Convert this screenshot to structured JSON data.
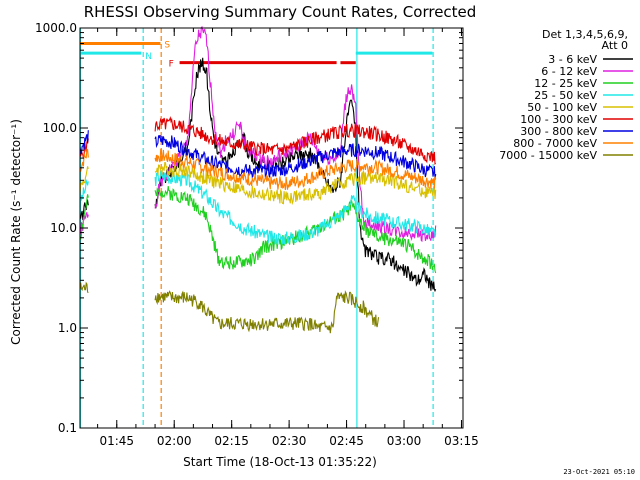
{
  "chart_data": {
    "type": "line",
    "title": "RHESSI Observing Summary Count Rates, Corrected",
    "xlabel": "Start Time (18-Oct-13 01:35:22)",
    "ylabel": "Corrected Count Rate (s⁻¹ detector⁻¹)",
    "yscale": "log",
    "ylim": [
      0.1,
      1000
    ],
    "yticks": [
      {
        "value": 0.1,
        "label": "0.1"
      },
      {
        "value": 1,
        "label": "1.0"
      },
      {
        "value": 10,
        "label": "10.0"
      },
      {
        "value": 100,
        "label": "100.0"
      },
      {
        "value": 1000,
        "label": "1000.0"
      }
    ],
    "xlim_minutes": [
      0,
      100
    ],
    "xticks": [
      {
        "minute": 9.6,
        "label": "01:45"
      },
      {
        "minute": 24.6,
        "label": "02:00"
      },
      {
        "minute": 39.6,
        "label": "02:15"
      },
      {
        "minute": 54.6,
        "label": "02:30"
      },
      {
        "minute": 69.6,
        "label": "02:45"
      },
      {
        "minute": 84.6,
        "label": "03:00"
      },
      {
        "minute": 99.6,
        "label": "03:15"
      }
    ],
    "legend_header": [
      "Det 1,3,4,5,6,9,",
      "Att 0"
    ],
    "legend_position": "right",
    "series": [
      {
        "name": "3 - 6 keV",
        "color": "#000000",
        "points": [
          [
            0,
            12
          ],
          [
            2,
            18
          ],
          [
            19.5,
            16
          ],
          [
            21,
            28
          ],
          [
            24,
            38
          ],
          [
            28,
            60
          ],
          [
            29,
            120
          ],
          [
            30,
            260
          ],
          [
            31,
            400
          ],
          [
            32,
            440
          ],
          [
            33,
            380
          ],
          [
            34,
            150
          ],
          [
            35,
            80
          ],
          [
            36,
            55
          ],
          [
            38,
            45
          ],
          [
            40,
            55
          ],
          [
            42,
            80
          ],
          [
            43,
            75
          ],
          [
            44,
            55
          ],
          [
            46,
            45
          ],
          [
            50,
            42
          ],
          [
            53,
            45
          ],
          [
            55,
            50
          ],
          [
            57,
            55
          ],
          [
            60,
            55
          ],
          [
            62,
            45
          ],
          [
            64,
            30
          ],
          [
            66,
            24
          ],
          [
            68,
            30
          ],
          [
            69,
            70
          ],
          [
            70,
            140
          ],
          [
            71,
            180
          ],
          [
            72,
            90
          ],
          [
            73,
            12
          ],
          [
            74,
            6
          ],
          [
            76,
            5.5
          ],
          [
            78,
            5
          ],
          [
            81,
            5
          ],
          [
            83,
            4
          ],
          [
            86,
            3.5
          ],
          [
            88,
            3
          ],
          [
            90,
            3.5
          ],
          [
            92,
            2.5
          ],
          [
            93,
            2.5
          ]
        ]
      },
      {
        "name": "6 - 12 keV",
        "color": "#e020e0",
        "points": [
          [
            0,
            9
          ],
          [
            2,
            14
          ],
          [
            19.5,
            16
          ],
          [
            21,
            28
          ],
          [
            24,
            40
          ],
          [
            28,
            70
          ],
          [
            29,
            200
          ],
          [
            30,
            600
          ],
          [
            31,
            850
          ],
          [
            32,
            900
          ],
          [
            33,
            800
          ],
          [
            34,
            300
          ],
          [
            35,
            120
          ],
          [
            36,
            70
          ],
          [
            37,
            55
          ],
          [
            38,
            75
          ],
          [
            40,
            85
          ],
          [
            41,
            105
          ],
          [
            42,
            100
          ],
          [
            43,
            70
          ],
          [
            44,
            60
          ],
          [
            47,
            50
          ],
          [
            50,
            45
          ],
          [
            53,
            55
          ],
          [
            56,
            60
          ],
          [
            59,
            75
          ],
          [
            60,
            80
          ],
          [
            61,
            70
          ],
          [
            62,
            60
          ],
          [
            64,
            50
          ],
          [
            66,
            50
          ],
          [
            68,
            55
          ],
          [
            69,
            150
          ],
          [
            70,
            240
          ],
          [
            71,
            250
          ],
          [
            72,
            150
          ],
          [
            73,
            30
          ],
          [
            74,
            12
          ],
          [
            76,
            11
          ],
          [
            80,
            10
          ],
          [
            84,
            9
          ],
          [
            88,
            9
          ],
          [
            92,
            8
          ],
          [
            93,
            10
          ]
        ]
      },
      {
        "name": "12 - 25 keV",
        "color": "#20d020",
        "points": [
          [
            0,
            8
          ],
          [
            2,
            20
          ],
          [
            19.5,
            20
          ],
          [
            21,
            24
          ],
          [
            24,
            22
          ],
          [
            28,
            20
          ],
          [
            31,
            16
          ],
          [
            33,
            13
          ],
          [
            35,
            7
          ],
          [
            36,
            5
          ],
          [
            38,
            4.5
          ],
          [
            42,
            4.5
          ],
          [
            46,
            5
          ],
          [
            48,
            6.5
          ],
          [
            52,
            7
          ],
          [
            56,
            8
          ],
          [
            60,
            9
          ],
          [
            64,
            11
          ],
          [
            68,
            13
          ],
          [
            71,
            17
          ],
          [
            72,
            14
          ],
          [
            74,
            10
          ],
          [
            78,
            8
          ],
          [
            82,
            7.5
          ],
          [
            86,
            6.5
          ],
          [
            90,
            5
          ],
          [
            93,
            4
          ]
        ]
      },
      {
        "name": "25 - 50 keV",
        "color": "#20e8e8",
        "points": [
          [
            0,
            18
          ],
          [
            2,
            28
          ],
          [
            19.5,
            30
          ],
          [
            21,
            34
          ],
          [
            24,
            32
          ],
          [
            28,
            30
          ],
          [
            31,
            24
          ],
          [
            33,
            21
          ],
          [
            35,
            17
          ],
          [
            37,
            14
          ],
          [
            40,
            12
          ],
          [
            43,
            10
          ],
          [
            46,
            9
          ],
          [
            50,
            8
          ],
          [
            54,
            8
          ],
          [
            58,
            8.5
          ],
          [
            62,
            9.5
          ],
          [
            66,
            12
          ],
          [
            69,
            15
          ],
          [
            71,
            19
          ],
          [
            73,
            15
          ],
          [
            76,
            13
          ],
          [
            80,
            12
          ],
          [
            84,
            11
          ],
          [
            88,
            10.5
          ],
          [
            92,
            9
          ],
          [
            93,
            9
          ]
        ]
      },
      {
        "name": "50 - 100 keV",
        "color": "#d8c000",
        "points": [
          [
            0,
            25
          ],
          [
            2,
            36
          ],
          [
            19.5,
            38
          ],
          [
            21,
            40
          ],
          [
            24,
            38
          ],
          [
            28,
            38
          ],
          [
            31,
            33
          ],
          [
            34,
            30
          ],
          [
            38,
            27
          ],
          [
            42,
            24
          ],
          [
            46,
            22
          ],
          [
            50,
            21
          ],
          [
            54,
            20
          ],
          [
            58,
            21
          ],
          [
            62,
            22
          ],
          [
            66,
            26
          ],
          [
            70,
            30
          ],
          [
            74,
            32
          ],
          [
            78,
            31
          ],
          [
            82,
            29
          ],
          [
            86,
            26
          ],
          [
            90,
            23
          ],
          [
            93,
            22
          ]
        ]
      },
      {
        "name": "100 - 300 keV",
        "color": "#e00000",
        "points": [
          [
            0,
            50
          ],
          [
            2,
            70
          ],
          [
            19.5,
            105
          ],
          [
            21,
            108
          ],
          [
            24,
            110
          ],
          [
            28,
            100
          ],
          [
            31,
            90
          ],
          [
            34,
            80
          ],
          [
            38,
            72
          ],
          [
            42,
            68
          ],
          [
            46,
            63
          ],
          [
            50,
            60
          ],
          [
            54,
            62
          ],
          [
            58,
            70
          ],
          [
            62,
            80
          ],
          [
            66,
            88
          ],
          [
            70,
            95
          ],
          [
            74,
            92
          ],
          [
            78,
            85
          ],
          [
            82,
            75
          ],
          [
            86,
            63
          ],
          [
            90,
            55
          ],
          [
            93,
            50
          ]
        ]
      },
      {
        "name": "300 - 800 keV",
        "color": "#0000e0",
        "points": [
          [
            0,
            60
          ],
          [
            2,
            82
          ],
          [
            19.5,
            70
          ],
          [
            21,
            76
          ],
          [
            24,
            72
          ],
          [
            28,
            60
          ],
          [
            31,
            52
          ],
          [
            34,
            46
          ],
          [
            38,
            41
          ],
          [
            42,
            38
          ],
          [
            46,
            37
          ],
          [
            50,
            37
          ],
          [
            54,
            39
          ],
          [
            58,
            44
          ],
          [
            62,
            50
          ],
          [
            66,
            56
          ],
          [
            70,
            60
          ],
          [
            74,
            60
          ],
          [
            78,
            56
          ],
          [
            82,
            50
          ],
          [
            86,
            44
          ],
          [
            90,
            38
          ],
          [
            93,
            35
          ]
        ]
      },
      {
        "name": "800 - 7000 keV",
        "color": "#ff8000",
        "points": [
          [
            0,
            40
          ],
          [
            2,
            58
          ],
          [
            19.5,
            50
          ],
          [
            21,
            53
          ],
          [
            24,
            50
          ],
          [
            28,
            46
          ],
          [
            31,
            42
          ],
          [
            34,
            38
          ],
          [
            38,
            35
          ],
          [
            42,
            32
          ],
          [
            46,
            30
          ],
          [
            50,
            28
          ],
          [
            54,
            28
          ],
          [
            58,
            30
          ],
          [
            62,
            34
          ],
          [
            66,
            38
          ],
          [
            70,
            42
          ],
          [
            74,
            42
          ],
          [
            78,
            40
          ],
          [
            82,
            37
          ],
          [
            86,
            33
          ],
          [
            90,
            30
          ],
          [
            93,
            28
          ]
        ]
      },
      {
        "name": "7000 - 15000 keV",
        "color": "#808000",
        "points": [
          [
            0,
            2.5
          ],
          [
            2,
            2.5
          ],
          [
            24,
            2.0
          ],
          [
            28,
            2.0
          ],
          [
            31,
            1.8
          ],
          [
            34,
            1.3
          ],
          [
            36,
            1.1
          ],
          [
            38,
            1.1
          ],
          [
            60,
            1.1
          ],
          [
            62,
            1.0
          ],
          [
            64,
            1.0
          ],
          [
            66,
            1.0
          ],
          [
            67,
            2.0
          ],
          [
            70,
            2.0
          ],
          [
            72,
            1.8
          ],
          [
            74,
            1.6
          ],
          [
            76,
            1.3
          ],
          [
            78,
            1.1
          ]
        ]
      }
    ],
    "state_bars": [
      {
        "label": "S",
        "color": "#ff8000",
        "minute_start": 0,
        "minute_end": 21,
        "value": 700
      },
      {
        "label": "N",
        "color": "#20e8e8",
        "minute_start": 0,
        "minute_end": 16,
        "value": 560
      },
      {
        "label": "N",
        "color": "#20e8e8",
        "minute_start": 72,
        "minute_end": 92,
        "value": 560
      },
      {
        "label": "F",
        "color": "#e00000",
        "minute_start": 26,
        "minute_end": 67,
        "value": 450
      },
      {
        "label": "F",
        "color": "#e00000",
        "minute_start": 68,
        "minute_end": 72,
        "value": 450
      }
    ],
    "vertical_markers": [
      {
        "minute": 0.1,
        "color": "#20e8e8",
        "style": "solid"
      },
      {
        "minute": 16.5,
        "color": "#20e8e8",
        "style": "dashed"
      },
      {
        "minute": 21.2,
        "color": "#ff8000",
        "style": "dashed"
      },
      {
        "minute": 72.3,
        "color": "#20e8e8",
        "style": "solid"
      },
      {
        "minute": 92.2,
        "color": "#20e8e8",
        "style": "dashed"
      }
    ]
  },
  "footer_date": "23-Oct-2021 05:10"
}
